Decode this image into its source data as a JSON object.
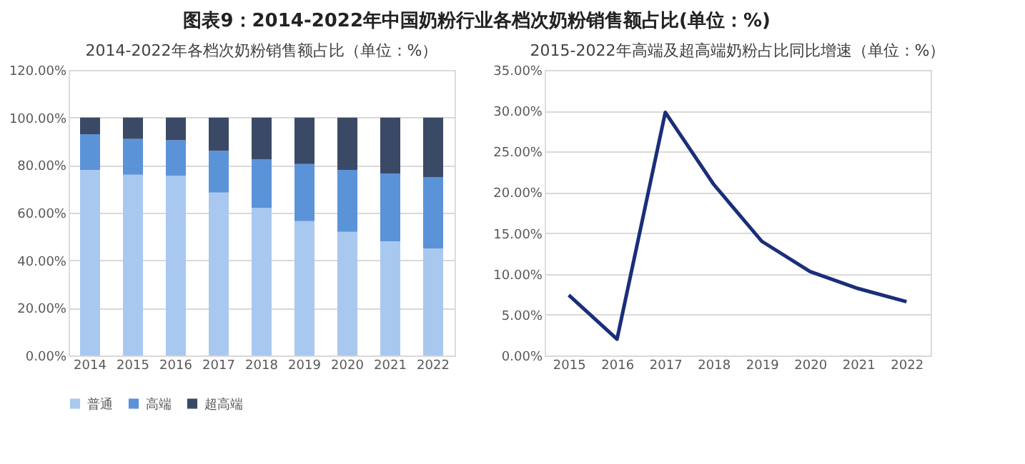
{
  "chart_data": [
    {
      "type": "bar",
      "title": "2014-2022年各档次奶粉销售额占比（单位：%）",
      "annotations": [
        "图表9：2014-2022年中国奶粉行业各档次奶粉销售额占比(单位：%)"
      ],
      "stacked": true,
      "grid": "y",
      "legend": "bottom",
      "categories": [
        "2014",
        "2015",
        "2016",
        "2017",
        "2018",
        "2019",
        "2020",
        "2021",
        "2022"
      ],
      "ylim": [
        0,
        120
      ],
      "yticks": [
        {
          "value": 0,
          "label": "0.00%"
        },
        {
          "value": 20,
          "label": "20.00%"
        },
        {
          "value": 40,
          "label": "40.00%"
        },
        {
          "value": 60,
          "label": "60.00%"
        },
        {
          "value": 80,
          "label": "80.00%"
        },
        {
          "value": 100,
          "label": "100.00%"
        },
        {
          "value": 120,
          "label": "120.00%"
        }
      ],
      "series": [
        {
          "name": "普通",
          "color": "#a9c8f0",
          "values": [
            78,
            76,
            75.5,
            68.5,
            62,
            56.5,
            52,
            48,
            45
          ]
        },
        {
          "name": "高端",
          "color": "#5b93d9",
          "values": [
            15,
            15,
            15,
            17.5,
            20.5,
            24,
            26,
            28.5,
            30
          ]
        },
        {
          "name": "超高端",
          "color": "#3a4a66",
          "values": [
            7,
            9,
            9.5,
            14,
            17.5,
            19.5,
            22,
            23.5,
            25
          ]
        }
      ]
    },
    {
      "type": "line",
      "title": "2015-2022年高端及超高端奶粉占比同比增速（单位：%）",
      "grid": "y",
      "marker": "none",
      "line_style": "solid",
      "categories": [
        "2015",
        "2016",
        "2017",
        "2018",
        "2019",
        "2020",
        "2021",
        "2022"
      ],
      "ylim": [
        0,
        35
      ],
      "yticks": [
        {
          "value": 0,
          "label": "0.00%"
        },
        {
          "value": 5,
          "label": "5.00%"
        },
        {
          "value": 10,
          "label": "10.00%"
        },
        {
          "value": 15,
          "label": "15.00%"
        },
        {
          "value": 20,
          "label": "20.00%"
        },
        {
          "value": 25,
          "label": "25.00%"
        },
        {
          "value": 30,
          "label": "30.00%"
        },
        {
          "value": 35,
          "label": "35.00%"
        }
      ],
      "series": [
        {
          "color": "#1a2e7a",
          "values": [
            7.4,
            2.0,
            29.8,
            21.0,
            14.0,
            10.3,
            8.2,
            6.6
          ]
        }
      ]
    }
  ]
}
